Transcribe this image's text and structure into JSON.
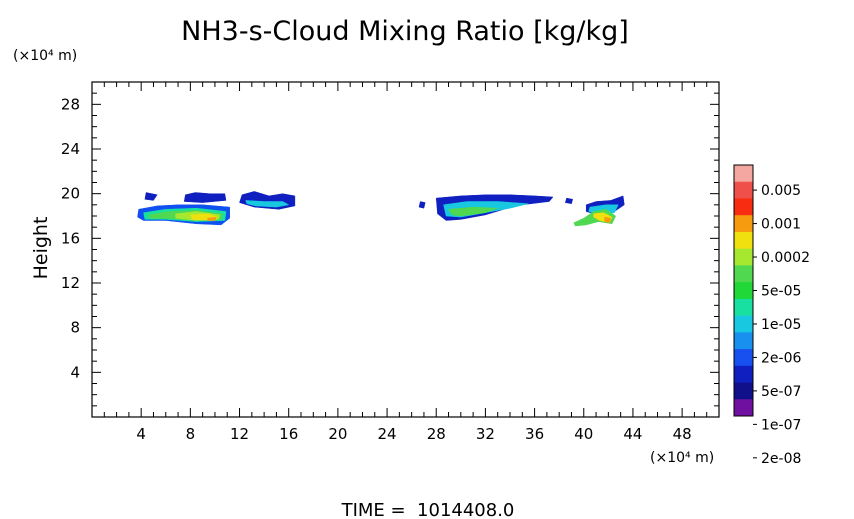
{
  "chart_data": {
    "type": "heatmap",
    "title": "NH3-s-Cloud Mixing Ratio [kg/kg]",
    "ylabel": "Height",
    "x_unit": "(×10⁴ m)",
    "y_unit": "(×10⁴ m)",
    "footer": "TIME =  1014408.0",
    "xlim": [
      0,
      51
    ],
    "ylim": [
      0,
      30
    ],
    "x_ticks": [
      4,
      8,
      12,
      16,
      20,
      24,
      28,
      32,
      36,
      40,
      44,
      48
    ],
    "y_ticks": [
      4,
      8,
      12,
      16,
      20,
      24,
      28
    ],
    "x_minor_step": 1,
    "y_minor_step": 1,
    "grid": false,
    "colorbar": {
      "labels": [
        "0.005",
        "0.001",
        "0.0002",
        "5e-05",
        "1e-05",
        "2e-06",
        "5e-07",
        "1e-07",
        "2e-08"
      ],
      "colors": [
        "#f4a6a0",
        "#f0504a",
        "#f82c10",
        "#f69a10",
        "#f0e010",
        "#a6e830",
        "#50d850",
        "#20d838",
        "#18e0a0",
        "#18c8e0",
        "#1890f0",
        "#1850f0",
        "#1020c0",
        "#10108a",
        "#7010a0"
      ]
    },
    "cloud_regions": [
      {
        "color": "#1020c0",
        "points": [
          [
            4.4,
            20.1
          ],
          [
            5.3,
            19.9
          ],
          [
            5.0,
            19.4
          ],
          [
            4.3,
            19.5
          ]
        ]
      },
      {
        "color": "#1020c0",
        "points": [
          [
            7.6,
            19.9
          ],
          [
            8.4,
            20.1
          ],
          [
            9.6,
            20.0
          ],
          [
            10.8,
            20.0
          ],
          [
            10.9,
            19.4
          ],
          [
            9.0,
            19.2
          ],
          [
            7.5,
            19.3
          ]
        ]
      },
      {
        "color": "#1020c0",
        "points": [
          [
            12.2,
            19.9
          ],
          [
            13.2,
            20.2
          ],
          [
            14.4,
            19.8
          ],
          [
            15.5,
            20.0
          ],
          [
            16.5,
            19.8
          ],
          [
            16.5,
            18.9
          ],
          [
            15.2,
            18.6
          ],
          [
            13.2,
            18.8
          ],
          [
            12.0,
            19.2
          ]
        ]
      },
      {
        "color": "#18c8e0",
        "points": [
          [
            12.5,
            19.4
          ],
          [
            14.0,
            19.3
          ],
          [
            15.5,
            19.3
          ],
          [
            16.0,
            19.0
          ],
          [
            15.0,
            18.8
          ],
          [
            13.3,
            18.9
          ],
          [
            12.6,
            19.1
          ]
        ]
      },
      {
        "color": "#1050f0",
        "points": [
          [
            3.8,
            18.6
          ],
          [
            5.3,
            18.9
          ],
          [
            7.0,
            19.0
          ],
          [
            9.0,
            19.0
          ],
          [
            11.2,
            18.8
          ],
          [
            11.2,
            17.8
          ],
          [
            10.5,
            17.2
          ],
          [
            8.5,
            17.3
          ],
          [
            6.0,
            17.6
          ],
          [
            4.2,
            17.6
          ],
          [
            3.7,
            17.9
          ]
        ]
      },
      {
        "color": "#18e0a0",
        "points": [
          [
            4.2,
            18.3
          ],
          [
            6.0,
            18.6
          ],
          [
            8.5,
            18.7
          ],
          [
            10.9,
            18.4
          ],
          [
            10.8,
            17.6
          ],
          [
            8.5,
            17.5
          ],
          [
            6.0,
            17.7
          ],
          [
            4.3,
            17.7
          ]
        ]
      },
      {
        "color": "#50d850",
        "points": [
          [
            4.6,
            18.1
          ],
          [
            6.2,
            18.4
          ],
          [
            8.5,
            18.5
          ],
          [
            10.6,
            18.2
          ],
          [
            10.5,
            17.7
          ],
          [
            8.5,
            17.6
          ],
          [
            6.0,
            17.8
          ],
          [
            4.7,
            17.8
          ]
        ]
      },
      {
        "color": "#a6e830",
        "points": [
          [
            6.8,
            18.2
          ],
          [
            8.5,
            18.4
          ],
          [
            10.4,
            18.1
          ],
          [
            10.3,
            17.7
          ],
          [
            8.5,
            17.6
          ],
          [
            6.8,
            17.8
          ]
        ]
      },
      {
        "color": "#f0e010",
        "points": [
          [
            8.0,
            18.1
          ],
          [
            9.5,
            18.2
          ],
          [
            10.2,
            17.9
          ],
          [
            9.8,
            17.6
          ],
          [
            8.2,
            17.7
          ]
        ]
      },
      {
        "color": "#f69a10",
        "points": [
          [
            9.4,
            17.8
          ],
          [
            10.1,
            17.9
          ],
          [
            10.0,
            17.6
          ],
          [
            9.4,
            17.6
          ]
        ]
      },
      {
        "color": "#1020c0",
        "points": [
          [
            26.7,
            19.3
          ],
          [
            27.1,
            19.2
          ],
          [
            27.0,
            18.7
          ],
          [
            26.6,
            18.8
          ]
        ]
      },
      {
        "color": "#1020c0",
        "points": [
          [
            28.0,
            19.6
          ],
          [
            30.0,
            19.8
          ],
          [
            32.0,
            19.9
          ],
          [
            34.0,
            19.9
          ],
          [
            36.0,
            19.8
          ],
          [
            37.5,
            19.7
          ],
          [
            37.2,
            19.3
          ],
          [
            35.0,
            19.0
          ],
          [
            33.5,
            18.6
          ],
          [
            32.0,
            18.1
          ],
          [
            30.0,
            17.7
          ],
          [
            28.8,
            17.6
          ],
          [
            28.1,
            18.2
          ]
        ]
      },
      {
        "color": "#18c8e0",
        "points": [
          [
            28.6,
            19.0
          ],
          [
            30.5,
            19.3
          ],
          [
            33.0,
            19.3
          ],
          [
            35.5,
            19.1
          ],
          [
            34.0,
            18.7
          ],
          [
            32.0,
            18.3
          ],
          [
            30.0,
            17.9
          ],
          [
            28.8,
            18.0
          ]
        ]
      },
      {
        "color": "#50d850",
        "points": [
          [
            29.0,
            18.6
          ],
          [
            31.0,
            18.8
          ],
          [
            33.0,
            18.7
          ],
          [
            32.0,
            18.3
          ],
          [
            30.0,
            18.0
          ],
          [
            29.3,
            18.1
          ]
        ]
      },
      {
        "color": "#1020c0",
        "points": [
          [
            38.6,
            19.6
          ],
          [
            39.1,
            19.5
          ],
          [
            39.0,
            19.1
          ],
          [
            38.5,
            19.2
          ]
        ]
      },
      {
        "color": "#1020c0",
        "points": [
          [
            40.2,
            19.0
          ],
          [
            41.0,
            19.3
          ],
          [
            42.2,
            19.4
          ],
          [
            43.2,
            19.8
          ],
          [
            43.3,
            19.0
          ],
          [
            42.5,
            18.4
          ],
          [
            41.4,
            18.0
          ],
          [
            40.2,
            18.4
          ]
        ]
      },
      {
        "color": "#18c8e0",
        "points": [
          [
            40.5,
            18.8
          ],
          [
            41.8,
            19.0
          ],
          [
            42.8,
            19.0
          ],
          [
            42.5,
            18.3
          ],
          [
            41.2,
            18.1
          ],
          [
            40.4,
            18.4
          ]
        ]
      },
      {
        "color": "#50d850",
        "points": [
          [
            39.2,
            17.4
          ],
          [
            40.0,
            17.8
          ],
          [
            40.8,
            18.4
          ],
          [
            41.8,
            18.6
          ],
          [
            42.6,
            18.0
          ],
          [
            42.3,
            17.3
          ],
          [
            41.2,
            17.5
          ],
          [
            40.2,
            17.2
          ],
          [
            39.3,
            17.1
          ]
        ]
      },
      {
        "color": "#f0e010",
        "points": [
          [
            40.8,
            18.2
          ],
          [
            41.6,
            18.3
          ],
          [
            42.3,
            17.9
          ],
          [
            42.1,
            17.4
          ],
          [
            41.3,
            17.6
          ],
          [
            40.8,
            17.9
          ]
        ]
      },
      {
        "color": "#f69a10",
        "points": [
          [
            41.7,
            17.9
          ],
          [
            42.2,
            17.8
          ],
          [
            42.1,
            17.4
          ],
          [
            41.7,
            17.5
          ]
        ]
      }
    ]
  }
}
